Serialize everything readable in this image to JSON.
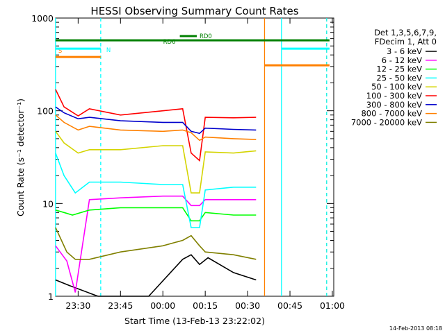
{
  "chart_data": {
    "type": "line",
    "title": "HESSI Observing Summary Count Rates",
    "xlabel": "Start Time (13-Feb-13 23:22:02)",
    "ylabel": "Count Rate (s⁻¹ detector⁻¹)",
    "y_scale": "log",
    "ylim": [
      1,
      1000
    ],
    "xlim": [
      "23:22:02",
      "01:00:30"
    ],
    "x_ticks": [
      "23:30",
      "23:45",
      "00:00",
      "00:15",
      "00:30",
      "00:45",
      "01:00"
    ],
    "y_ticks": [
      "1",
      "10",
      "100",
      "1000"
    ],
    "grid": false,
    "legend_position": "right",
    "legend_header": [
      "Det 1,3,5,6,7,9,",
      "FDecim 1, Att 0"
    ],
    "series": [
      {
        "name": "3 - 6 keV",
        "color": "#000000",
        "x": [
          "23:22",
          "23:27",
          "23:37",
          "23:55",
          "00:07",
          "00:10",
          "00:13",
          "00:16",
          "00:25",
          "00:33"
        ],
        "y": [
          1.5,
          1.3,
          1,
          1,
          2.5,
          2.8,
          2.2,
          2.6,
          1.8,
          1.5
        ]
      },
      {
        "name": "6 - 12 keV",
        "color": "#ff00ff",
        "x": [
          "23:22",
          "23:26",
          "23:29",
          "23:34",
          "23:45",
          "00:00",
          "00:07",
          "00:10",
          "00:13",
          "00:15",
          "00:25",
          "00:33"
        ],
        "y": [
          3.5,
          2.4,
          1.1,
          11,
          11.5,
          12,
          12,
          9.5,
          9.5,
          11,
          11,
          11
        ]
      },
      {
        "name": "12 - 25 keV",
        "color": "#00ff00",
        "x": [
          "23:22",
          "23:25",
          "23:28",
          "23:34",
          "23:45",
          "00:00",
          "00:07",
          "00:10",
          "00:13",
          "00:15",
          "00:25",
          "00:33"
        ],
        "y": [
          8.5,
          8,
          7.5,
          8.5,
          9,
          9,
          9,
          6.5,
          6.5,
          8,
          7.5,
          7.5
        ]
      },
      {
        "name": "25 - 50 keV",
        "color": "#00ffff",
        "x": [
          "23:22",
          "23:25",
          "23:29",
          "23:34",
          "23:45",
          "00:00",
          "00:07",
          "00:10",
          "00:13",
          "00:15",
          "00:25",
          "00:33"
        ],
        "y": [
          35,
          20,
          13,
          17,
          17,
          16,
          16,
          5.5,
          5.5,
          14,
          15,
          15
        ]
      },
      {
        "name": "50 - 100 keV",
        "color": "#d4d400",
        "x": [
          "23:22",
          "23:25",
          "23:30",
          "23:34",
          "23:45",
          "00:00",
          "00:07",
          "00:10",
          "00:13",
          "00:15",
          "00:25",
          "00:33"
        ],
        "y": [
          60,
          45,
          35,
          38,
          38,
          42,
          42,
          13,
          13,
          36,
          35,
          37
        ]
      },
      {
        "name": "100 - 300 keV",
        "color": "#ff0000",
        "x": [
          "23:22",
          "23:25",
          "23:30",
          "23:34",
          "23:45",
          "00:00",
          "00:07",
          "00:10",
          "00:13",
          "00:15",
          "00:25",
          "00:33"
        ],
        "y": [
          170,
          110,
          88,
          105,
          90,
          100,
          105,
          35,
          29,
          85,
          84,
          85
        ]
      },
      {
        "name": "300 - 800 keV",
        "color": "#0000cc",
        "x": [
          "23:22",
          "23:25",
          "23:30",
          "23:34",
          "23:45",
          "00:00",
          "00:07",
          "00:10",
          "00:13",
          "00:15",
          "00:25",
          "00:33"
        ],
        "y": [
          110,
          95,
          82,
          85,
          78,
          75,
          75,
          60,
          57,
          65,
          63,
          62
        ]
      },
      {
        "name": "800 - 7000 keV",
        "color": "#ff8000",
        "x": [
          "23:22",
          "23:25",
          "23:30",
          "23:34",
          "23:45",
          "00:00",
          "00:07",
          "00:10",
          "00:13",
          "00:15",
          "00:25",
          "00:33"
        ],
        "y": [
          90,
          75,
          62,
          68,
          62,
          60,
          62,
          58,
          48,
          52,
          50,
          49
        ]
      },
      {
        "name": "7000 - 20000 keV",
        "color": "#808000",
        "x": [
          "23:22",
          "23:26",
          "23:29",
          "23:34",
          "23:45",
          "00:00",
          "00:07",
          "00:10",
          "00:13",
          "00:15",
          "00:25",
          "00:33"
        ],
        "y": [
          5.5,
          3,
          2.5,
          2.5,
          3,
          3.5,
          4,
          4.5,
          3.5,
          3,
          2.8,
          2.5
        ]
      }
    ],
    "vertical_markers": [
      {
        "x": "23:22",
        "color": "#00ffff",
        "style": "solid"
      },
      {
        "x": "23:38",
        "color": "#00ffff",
        "style": "dashed"
      },
      {
        "x": "00:36",
        "color": "#ff8000",
        "style": "solid"
      },
      {
        "x": "00:42",
        "color": "#00ffff",
        "style": "solid"
      },
      {
        "x": "00:58",
        "color": "#ff8000",
        "style": "dashed"
      },
      {
        "x": "00:58",
        "color": "#00ffff",
        "style": "dashed"
      }
    ],
    "flags": [
      {
        "label": "S",
        "color": "#ff8000",
        "x_start": "23:22",
        "x_end": "23:38"
      },
      {
        "label": "N",
        "color": "#00ffff",
        "x_start": "23:22",
        "x_end": "23:38"
      },
      {
        "label": "",
        "color": "#ff8000",
        "x_start": "00:36",
        "x_end": "00:59"
      },
      {
        "label": "",
        "color": "#00ffff",
        "x_start": "00:42",
        "x_end": "00:59"
      },
      {
        "label": "RD0",
        "color": "#008000",
        "x_start": "23:22",
        "x_end": "00:59"
      },
      {
        "label": "RD6",
        "color": "#008000",
        "x_start": "00:06",
        "x_end": "00:12"
      }
    ],
    "timestamp": "14-Feb-2013 08:18"
  }
}
